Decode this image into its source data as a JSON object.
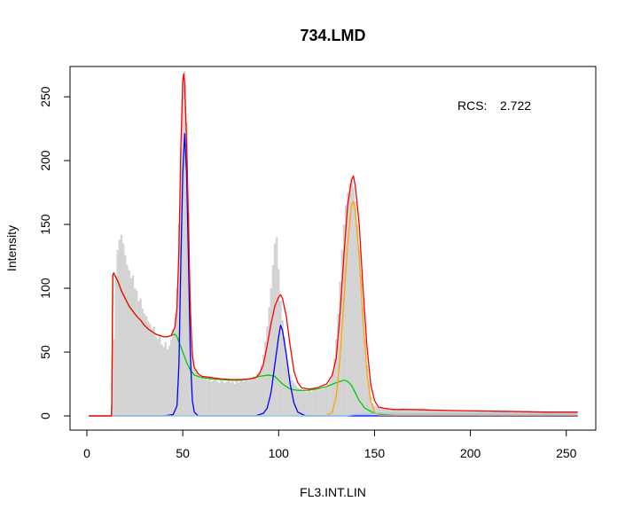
{
  "chart_data": {
    "type": "area",
    "title": "734.LMD",
    "xlabel": "FL3.INT.LIN",
    "ylabel": "Intensity",
    "xlim": [
      0,
      256
    ],
    "ylim": [
      0,
      260
    ],
    "xticks": [
      0,
      50,
      100,
      150,
      200,
      250
    ],
    "yticks": [
      0,
      50,
      100,
      150,
      200,
      250
    ],
    "annotation": {
      "label": "RCS:",
      "value": "2.722",
      "position": "top-right"
    },
    "histogram": {
      "color": "#d3d3d3",
      "x_range": [
        1,
        256
      ],
      "points": [
        [
          1,
          0
        ],
        [
          12,
          0
        ],
        [
          13,
          8
        ],
        [
          14,
          60
        ],
        [
          15,
          110
        ],
        [
          16,
          130
        ],
        [
          17,
          138
        ],
        [
          18,
          142
        ],
        [
          19,
          135
        ],
        [
          20,
          126
        ],
        [
          21,
          118
        ],
        [
          22,
          114
        ],
        [
          23,
          108
        ],
        [
          24,
          110
        ],
        [
          25,
          100
        ],
        [
          26,
          98
        ],
        [
          27,
          90
        ],
        [
          28,
          92
        ],
        [
          29,
          84
        ],
        [
          30,
          80
        ],
        [
          31,
          78
        ],
        [
          32,
          74
        ],
        [
          33,
          72
        ],
        [
          34,
          68
        ],
        [
          35,
          70
        ],
        [
          36,
          62
        ],
        [
          37,
          60
        ],
        [
          38,
          64
        ],
        [
          39,
          56
        ],
        [
          40,
          54
        ],
        [
          41,
          58
        ],
        [
          42,
          52
        ],
        [
          43,
          55
        ],
        [
          44,
          60
        ],
        [
          45,
          68
        ],
        [
          46,
          80
        ],
        [
          47,
          100
        ],
        [
          48,
          150
        ],
        [
          49,
          210
        ],
        [
          50,
          262
        ],
        [
          51,
          270
        ],
        [
          52,
          230
        ],
        [
          53,
          160
        ],
        [
          54,
          90
        ],
        [
          55,
          50
        ],
        [
          56,
          38
        ],
        [
          57,
          34
        ],
        [
          58,
          32
        ],
        [
          59,
          30
        ],
        [
          60,
          31
        ],
        [
          61,
          29
        ],
        [
          62,
          30
        ],
        [
          63,
          28
        ],
        [
          64,
          29
        ],
        [
          65,
          27
        ],
        [
          66,
          28
        ],
        [
          67,
          29
        ],
        [
          68,
          27
        ],
        [
          69,
          26
        ],
        [
          70,
          28
        ],
        [
          71,
          27
        ],
        [
          72,
          26
        ],
        [
          73,
          27
        ],
        [
          74,
          28
        ],
        [
          75,
          26
        ],
        [
          76,
          27
        ],
        [
          77,
          25
        ],
        [
          78,
          28
        ],
        [
          79,
          26
        ],
        [
          80,
          27
        ],
        [
          81,
          28
        ],
        [
          82,
          27
        ],
        [
          83,
          29
        ],
        [
          84,
          28
        ],
        [
          85,
          30
        ],
        [
          86,
          29
        ],
        [
          87,
          31
        ],
        [
          88,
          30
        ],
        [
          89,
          33
        ],
        [
          90,
          35
        ],
        [
          91,
          40
        ],
        [
          92,
          48
        ],
        [
          93,
          58
        ],
        [
          94,
          70
        ],
        [
          95,
          85
        ],
        [
          96,
          100
        ],
        [
          97,
          118
        ],
        [
          98,
          135
        ],
        [
          99,
          140
        ],
        [
          100,
          115
        ],
        [
          101,
          90
        ],
        [
          102,
          75
        ],
        [
          103,
          62
        ],
        [
          104,
          48
        ],
        [
          105,
          38
        ],
        [
          106,
          32
        ],
        [
          107,
          28
        ],
        [
          108,
          26
        ],
        [
          109,
          24
        ],
        [
          110,
          22
        ],
        [
          111,
          21
        ],
        [
          112,
          20
        ],
        [
          113,
          20
        ],
        [
          114,
          19
        ],
        [
          115,
          19
        ],
        [
          116,
          20
        ],
        [
          117,
          19
        ],
        [
          118,
          20
        ],
        [
          119,
          21
        ],
        [
          120,
          20
        ],
        [
          121,
          20
        ],
        [
          122,
          21
        ],
        [
          123,
          21
        ],
        [
          124,
          22
        ],
        [
          125,
          23
        ],
        [
          126,
          25
        ],
        [
          127,
          28
        ],
        [
          128,
          34
        ],
        [
          129,
          45
        ],
        [
          130,
          60
        ],
        [
          131,
          80
        ],
        [
          132,
          105
        ],
        [
          133,
          130
        ],
        [
          134,
          150
        ],
        [
          135,
          165
        ],
        [
          136,
          175
        ],
        [
          137,
          182
        ],
        [
          138,
          186
        ],
        [
          139,
          180
        ],
        [
          140,
          168
        ],
        [
          141,
          150
        ],
        [
          142,
          130
        ],
        [
          143,
          110
        ],
        [
          144,
          85
        ],
        [
          145,
          60
        ],
        [
          146,
          40
        ],
        [
          147,
          25
        ],
        [
          148,
          15
        ],
        [
          149,
          10
        ],
        [
          150,
          8
        ],
        [
          151,
          7
        ],
        [
          155,
          6
        ],
        [
          160,
          5
        ],
        [
          165,
          6
        ],
        [
          170,
          5
        ],
        [
          175,
          6
        ],
        [
          180,
          5
        ],
        [
          185,
          5
        ],
        [
          190,
          4
        ],
        [
          195,
          4
        ],
        [
          200,
          4
        ],
        [
          205,
          4
        ],
        [
          210,
          3
        ],
        [
          215,
          4
        ],
        [
          220,
          3
        ],
        [
          225,
          3
        ],
        [
          230,
          3
        ],
        [
          235,
          3
        ],
        [
          240,
          3
        ],
        [
          245,
          2
        ],
        [
          250,
          2
        ],
        [
          255,
          2
        ],
        [
          256,
          0
        ]
      ]
    },
    "series": [
      {
        "color": "#00cc00",
        "points": [
          [
            1,
            0
          ],
          [
            12.8,
            0
          ],
          [
            13,
            10
          ],
          [
            13.5,
            110
          ],
          [
            14,
            112
          ],
          [
            16,
            106
          ],
          [
            18,
            98
          ],
          [
            20,
            92
          ],
          [
            22,
            86
          ],
          [
            24,
            82
          ],
          [
            26,
            78
          ],
          [
            28,
            75
          ],
          [
            30,
            71
          ],
          [
            32,
            68
          ],
          [
            34,
            66
          ],
          [
            36,
            64
          ],
          [
            38,
            63
          ],
          [
            40,
            62
          ],
          [
            42,
            62
          ],
          [
            44,
            63
          ],
          [
            46,
            64
          ],
          [
            47,
            62
          ],
          [
            48,
            58
          ],
          [
            50,
            50
          ],
          [
            52,
            42
          ],
          [
            54,
            36
          ],
          [
            56,
            32
          ],
          [
            58,
            31
          ],
          [
            60,
            30
          ],
          [
            65,
            29
          ],
          [
            70,
            28.5
          ],
          [
            75,
            28
          ],
          [
            80,
            28
          ],
          [
            85,
            29
          ],
          [
            90,
            31
          ],
          [
            95,
            32
          ],
          [
            98,
            31
          ],
          [
            100,
            28
          ],
          [
            102,
            25
          ],
          [
            104,
            23
          ],
          [
            106,
            21
          ],
          [
            110,
            20
          ],
          [
            115,
            20
          ],
          [
            120,
            21
          ],
          [
            125,
            23
          ],
          [
            130,
            26
          ],
          [
            134,
            28
          ],
          [
            136,
            27
          ],
          [
            138,
            24
          ],
          [
            140,
            18
          ],
          [
            142,
            12
          ],
          [
            145,
            6
          ],
          [
            150,
            2
          ],
          [
            155,
            1
          ],
          [
            160,
            0.5
          ],
          [
            200,
            0.3
          ],
          [
            256,
            0.3
          ]
        ]
      },
      {
        "color": "#0000ff",
        "points": [
          [
            1,
            0
          ],
          [
            40,
            0
          ],
          [
            45,
            1
          ],
          [
            47,
            8
          ],
          [
            48,
            40
          ],
          [
            49,
            120
          ],
          [
            50,
            190
          ],
          [
            51,
            221
          ],
          [
            52,
            190
          ],
          [
            53,
            120
          ],
          [
            54,
            45
          ],
          [
            55,
            12
          ],
          [
            56,
            3
          ],
          [
            58,
            0
          ],
          [
            88,
            0
          ],
          [
            92,
            2
          ],
          [
            94,
            6
          ],
          [
            96,
            18
          ],
          [
            98,
            40
          ],
          [
            100,
            62
          ],
          [
            101,
            71
          ],
          [
            102,
            67
          ],
          [
            104,
            48
          ],
          [
            106,
            25
          ],
          [
            108,
            10
          ],
          [
            110,
            3
          ],
          [
            114,
            0
          ],
          [
            256,
            0
          ]
        ]
      },
      {
        "color": "#ffa500",
        "points": [
          [
            1,
            0
          ],
          [
            125,
            0
          ],
          [
            128,
            3
          ],
          [
            130,
            15
          ],
          [
            132,
            45
          ],
          [
            134,
            90
          ],
          [
            136,
            135
          ],
          [
            138,
            165
          ],
          [
            139,
            168
          ],
          [
            140,
            160
          ],
          [
            142,
            125
          ],
          [
            144,
            75
          ],
          [
            146,
            35
          ],
          [
            148,
            12
          ],
          [
            150,
            3
          ],
          [
            152,
            0.5
          ],
          [
            256,
            0.5
          ]
        ]
      },
      {
        "color": "#87cefa",
        "points": [
          [
            1,
            0
          ],
          [
            135,
            0
          ],
          [
            140,
            1
          ],
          [
            145,
            1.5
          ],
          [
            150,
            2
          ],
          [
            200,
            2
          ],
          [
            256,
            2
          ]
        ]
      },
      {
        "color": "#ff0000",
        "points": [
          [
            1,
            0
          ],
          [
            12.8,
            0
          ],
          [
            13,
            10
          ],
          [
            13.5,
            110
          ],
          [
            14,
            112
          ],
          [
            16,
            106
          ],
          [
            18,
            98
          ],
          [
            20,
            92
          ],
          [
            22,
            86
          ],
          [
            24,
            82
          ],
          [
            26,
            78
          ],
          [
            28,
            75
          ],
          [
            30,
            71
          ],
          [
            32,
            68
          ],
          [
            34,
            66
          ],
          [
            36,
            64
          ],
          [
            38,
            63
          ],
          [
            40,
            62
          ],
          [
            42,
            62
          ],
          [
            44,
            63
          ],
          [
            46,
            70
          ],
          [
            47,
            85
          ],
          [
            48,
            130
          ],
          [
            49,
            210
          ],
          [
            50,
            262
          ],
          [
            50.5,
            268
          ],
          [
            51,
            260
          ],
          [
            52,
            215
          ],
          [
            53,
            150
          ],
          [
            54,
            80
          ],
          [
            55,
            48
          ],
          [
            56,
            38
          ],
          [
            58,
            33
          ],
          [
            60,
            31
          ],
          [
            65,
            30
          ],
          [
            70,
            29
          ],
          [
            75,
            28.5
          ],
          [
            80,
            28.5
          ],
          [
            85,
            29
          ],
          [
            88,
            30
          ],
          [
            90,
            33
          ],
          [
            92,
            40
          ],
          [
            94,
            55
          ],
          [
            96,
            72
          ],
          [
            98,
            86
          ],
          [
            100,
            93
          ],
          [
            101,
            95
          ],
          [
            102,
            92
          ],
          [
            104,
            78
          ],
          [
            106,
            55
          ],
          [
            108,
            35
          ],
          [
            110,
            26
          ],
          [
            112,
            22
          ],
          [
            116,
            21
          ],
          [
            120,
            22
          ],
          [
            125,
            25
          ],
          [
            128,
            32
          ],
          [
            130,
            45
          ],
          [
            132,
            80
          ],
          [
            134,
            125
          ],
          [
            136,
            165
          ],
          [
            138,
            185
          ],
          [
            139,
            188
          ],
          [
            140,
            180
          ],
          [
            142,
            150
          ],
          [
            144,
            100
          ],
          [
            146,
            55
          ],
          [
            148,
            25
          ],
          [
            150,
            12
          ],
          [
            152,
            7
          ],
          [
            155,
            6
          ],
          [
            160,
            5
          ],
          [
            170,
            5
          ],
          [
            180,
            4.5
          ],
          [
            200,
            4
          ],
          [
            220,
            3.5
          ],
          [
            240,
            3
          ],
          [
            256,
            3
          ]
        ]
      }
    ]
  }
}
